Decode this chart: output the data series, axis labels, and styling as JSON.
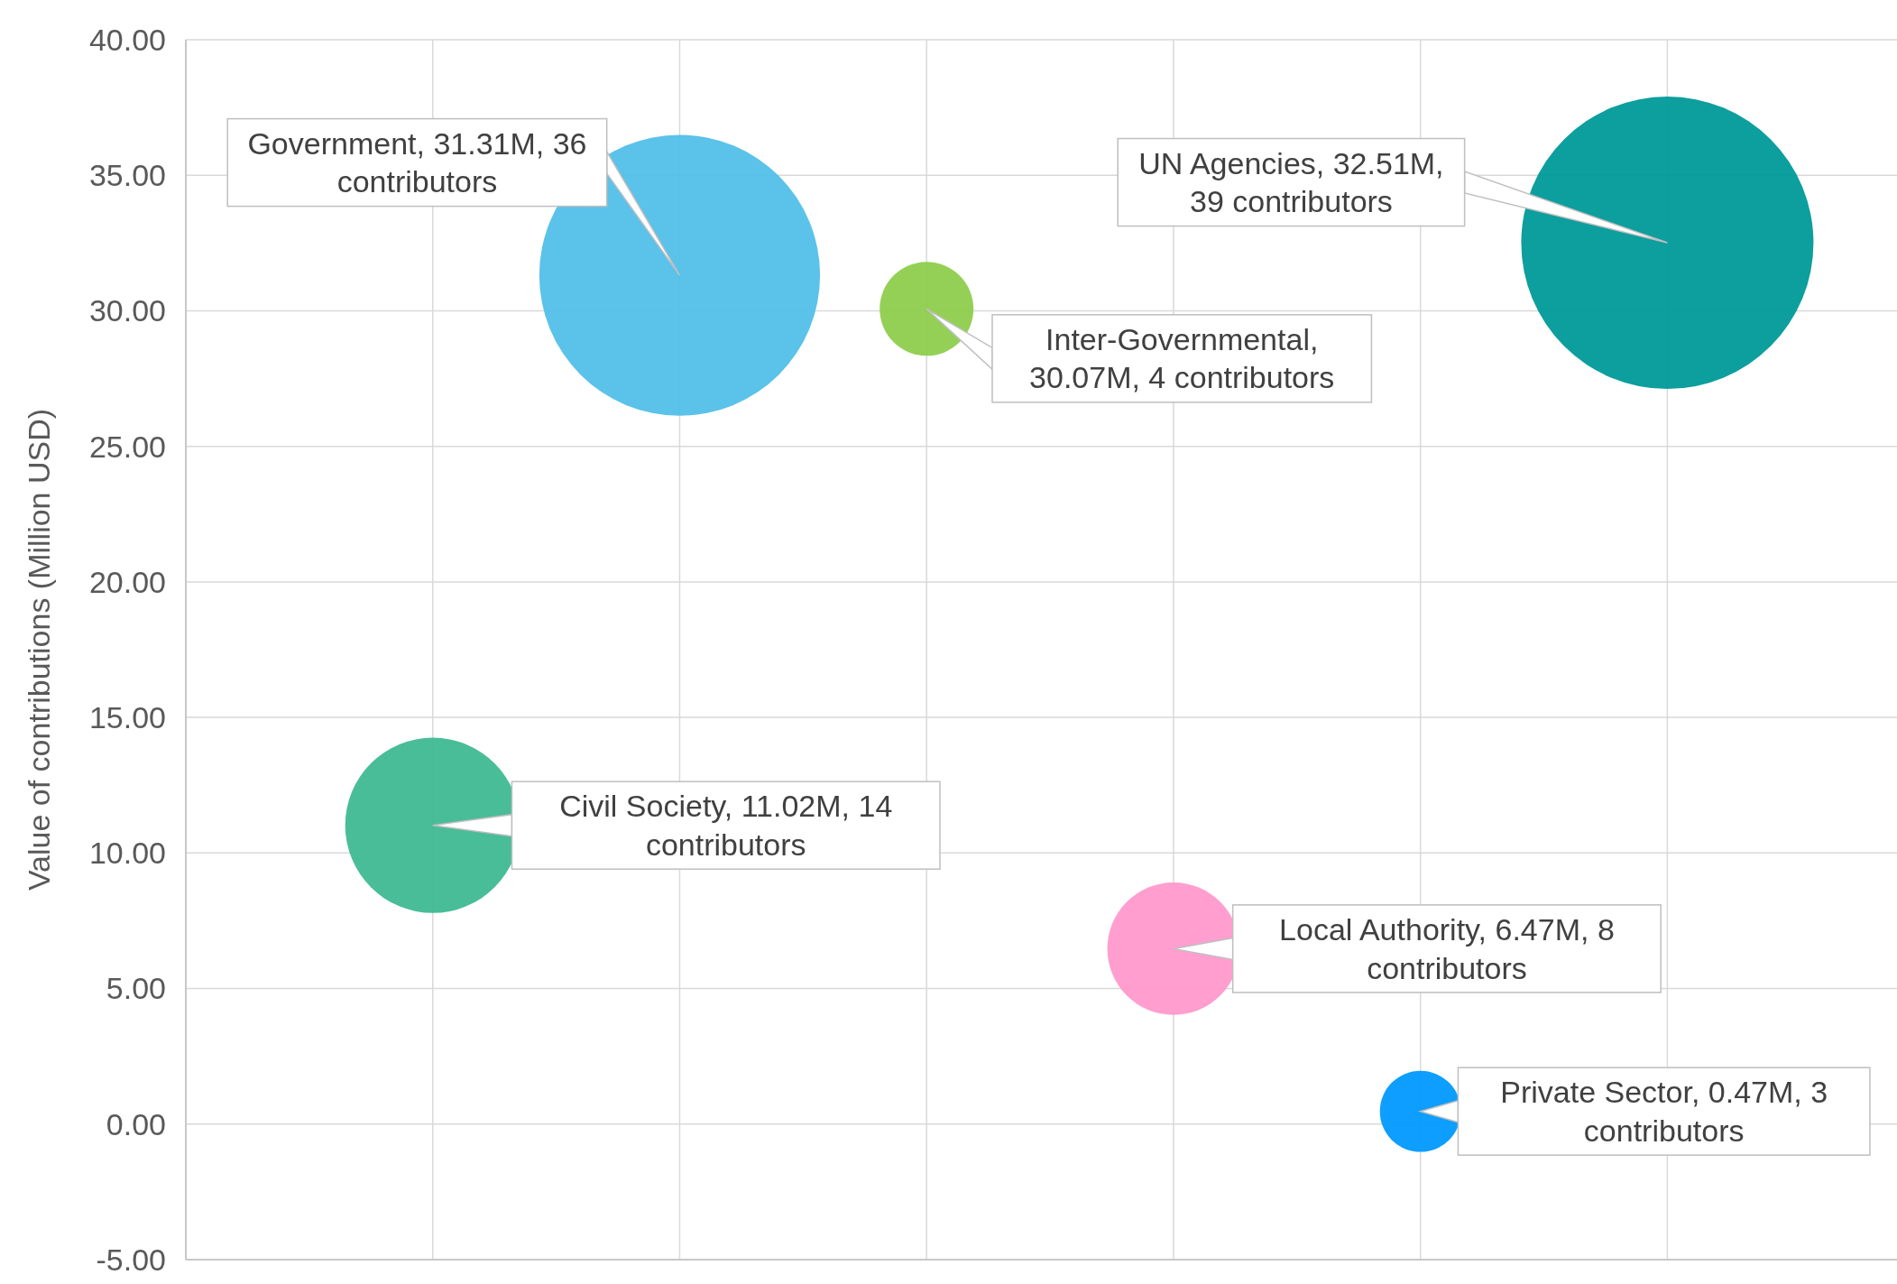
{
  "chart_data": {
    "type": "bubble",
    "ylabel": "Value of contributions (Million USD)",
    "categories": [
      null,
      null,
      null,
      null,
      null,
      null
    ],
    "values": [
      11.02,
      31.31,
      30.07,
      6.47,
      0.47,
      32.51
    ],
    "sizes": [
      0.359,
      0.923,
      0.103,
      0.205,
      0.077,
      1
    ],
    "colors": [
      "#3fb991",
      "#52bfe9",
      "#8ecd4c",
      "#ff99cc",
      "#0099ff",
      "#009999"
    ],
    "value_labels": [
      "Civil Society, 11.02M, 14\ncontributors",
      "Government, 31.31M, 36\ncontributors",
      "Inter-Governmental,\n30.07M, 4 contributors",
      "Local Authority, 6.47M, 8\ncontributors",
      "Private Sector, 0.47M, 3\ncontributors",
      "UN Agencies, 32.51M,\n39 contributors"
    ],
    "ylim": [
      -5,
      40
    ],
    "yticks": [
      {
        "value": -5,
        "label": "-5.00"
      },
      {
        "value": 0,
        "label": "0.00"
      },
      {
        "value": 5,
        "label": "5.00"
      },
      {
        "value": 10,
        "label": "10.00"
      },
      {
        "value": 15,
        "label": "15.00"
      },
      {
        "value": 20,
        "label": "20.00"
      },
      {
        "value": 25,
        "label": "25.00"
      },
      {
        "value": 30,
        "label": "30.00"
      },
      {
        "value": 35,
        "label": "35.00"
      },
      {
        "value": 40,
        "label": "40.00"
      }
    ],
    "grid": true
  }
}
